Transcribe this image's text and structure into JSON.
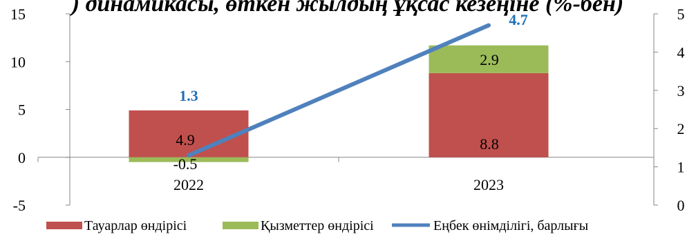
{
  "chart_data": {
    "type": "bar",
    "title": ") динамикасы, өткен жылдың ұқсас кезеңіне (%-бен)",
    "categories": [
      "2022",
      "2023"
    ],
    "series": [
      {
        "name": "Тауарлар өндірісі",
        "kind": "stacked-bar",
        "axis": "left",
        "values": [
          4.9,
          8.8
        ],
        "color": "#C0504D"
      },
      {
        "name": "Қызметтер өндірісі",
        "kind": "stacked-bar",
        "axis": "left",
        "values": [
          -0.5,
          2.9
        ],
        "color": "#9BBB59"
      },
      {
        "name": "Еңбек өнімділігі, барлығы",
        "kind": "line",
        "axis": "right",
        "values": [
          1.3,
          4.7
        ],
        "color": "#4F81BD"
      }
    ],
    "left_axis": {
      "min": -5,
      "max": 15,
      "ticks": [
        "-5",
        "0",
        "5",
        "10",
        "15"
      ]
    },
    "right_axis": {
      "min": 0,
      "max": 5,
      "ticks": [
        "0",
        "1",
        "2",
        "3",
        "4",
        "5"
      ]
    },
    "legend_position": "bottom",
    "grid": false
  }
}
